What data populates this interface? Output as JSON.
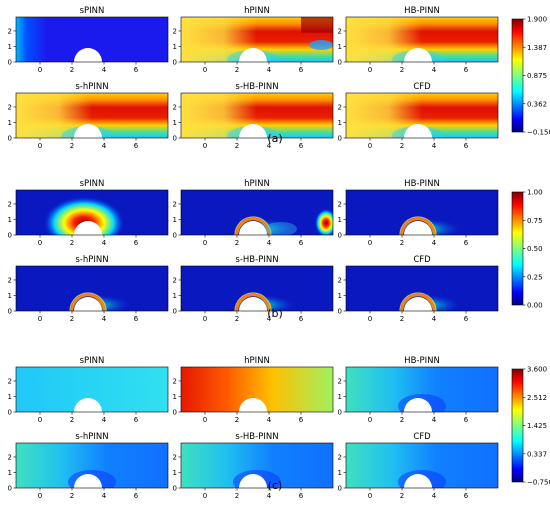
{
  "figure": {
    "groups": [
      {
        "label": "(a)",
        "panels": [
          "sPINN",
          "hPINN",
          "HB-PINN",
          "s-hPINN",
          "s-HB-PINN",
          "CFD"
        ],
        "colorbar": {
          "ticks": [
            "1.900",
            "1.387",
            "0.875",
            "0.362",
            "−0.150"
          ]
        }
      },
      {
        "label": "(b)",
        "panels": [
          "sPINN",
          "hPINN",
          "HB-PINN",
          "s-hPINN",
          "s-HB-PINN",
          "CFD"
        ],
        "colorbar": {
          "ticks": [
            "1.00",
            "0.75",
            "0.50",
            "0.25",
            "0.00"
          ]
        }
      },
      {
        "label": "(c)",
        "panels": [
          "sPINN",
          "hPINN",
          "HB-PINN",
          "s-hPINN",
          "s-HB-PINN",
          "CFD"
        ],
        "colorbar": {
          "ticks": [
            "3.600",
            "2.512",
            "1.425",
            "0.337",
            "−0.750"
          ]
        }
      }
    ],
    "axes": {
      "x_ticks": [
        "0",
        "2",
        "4",
        "6"
      ],
      "y_ticks": [
        "2",
        "1",
        "0"
      ]
    },
    "colormap": {
      "name": "jet",
      "stops": [
        "#00007f",
        "#0000ff",
        "#007fff",
        "#00ffff",
        "#7fff7f",
        "#ffff00",
        "#ff7f00",
        "#ff0000",
        "#7f0000"
      ]
    }
  }
}
